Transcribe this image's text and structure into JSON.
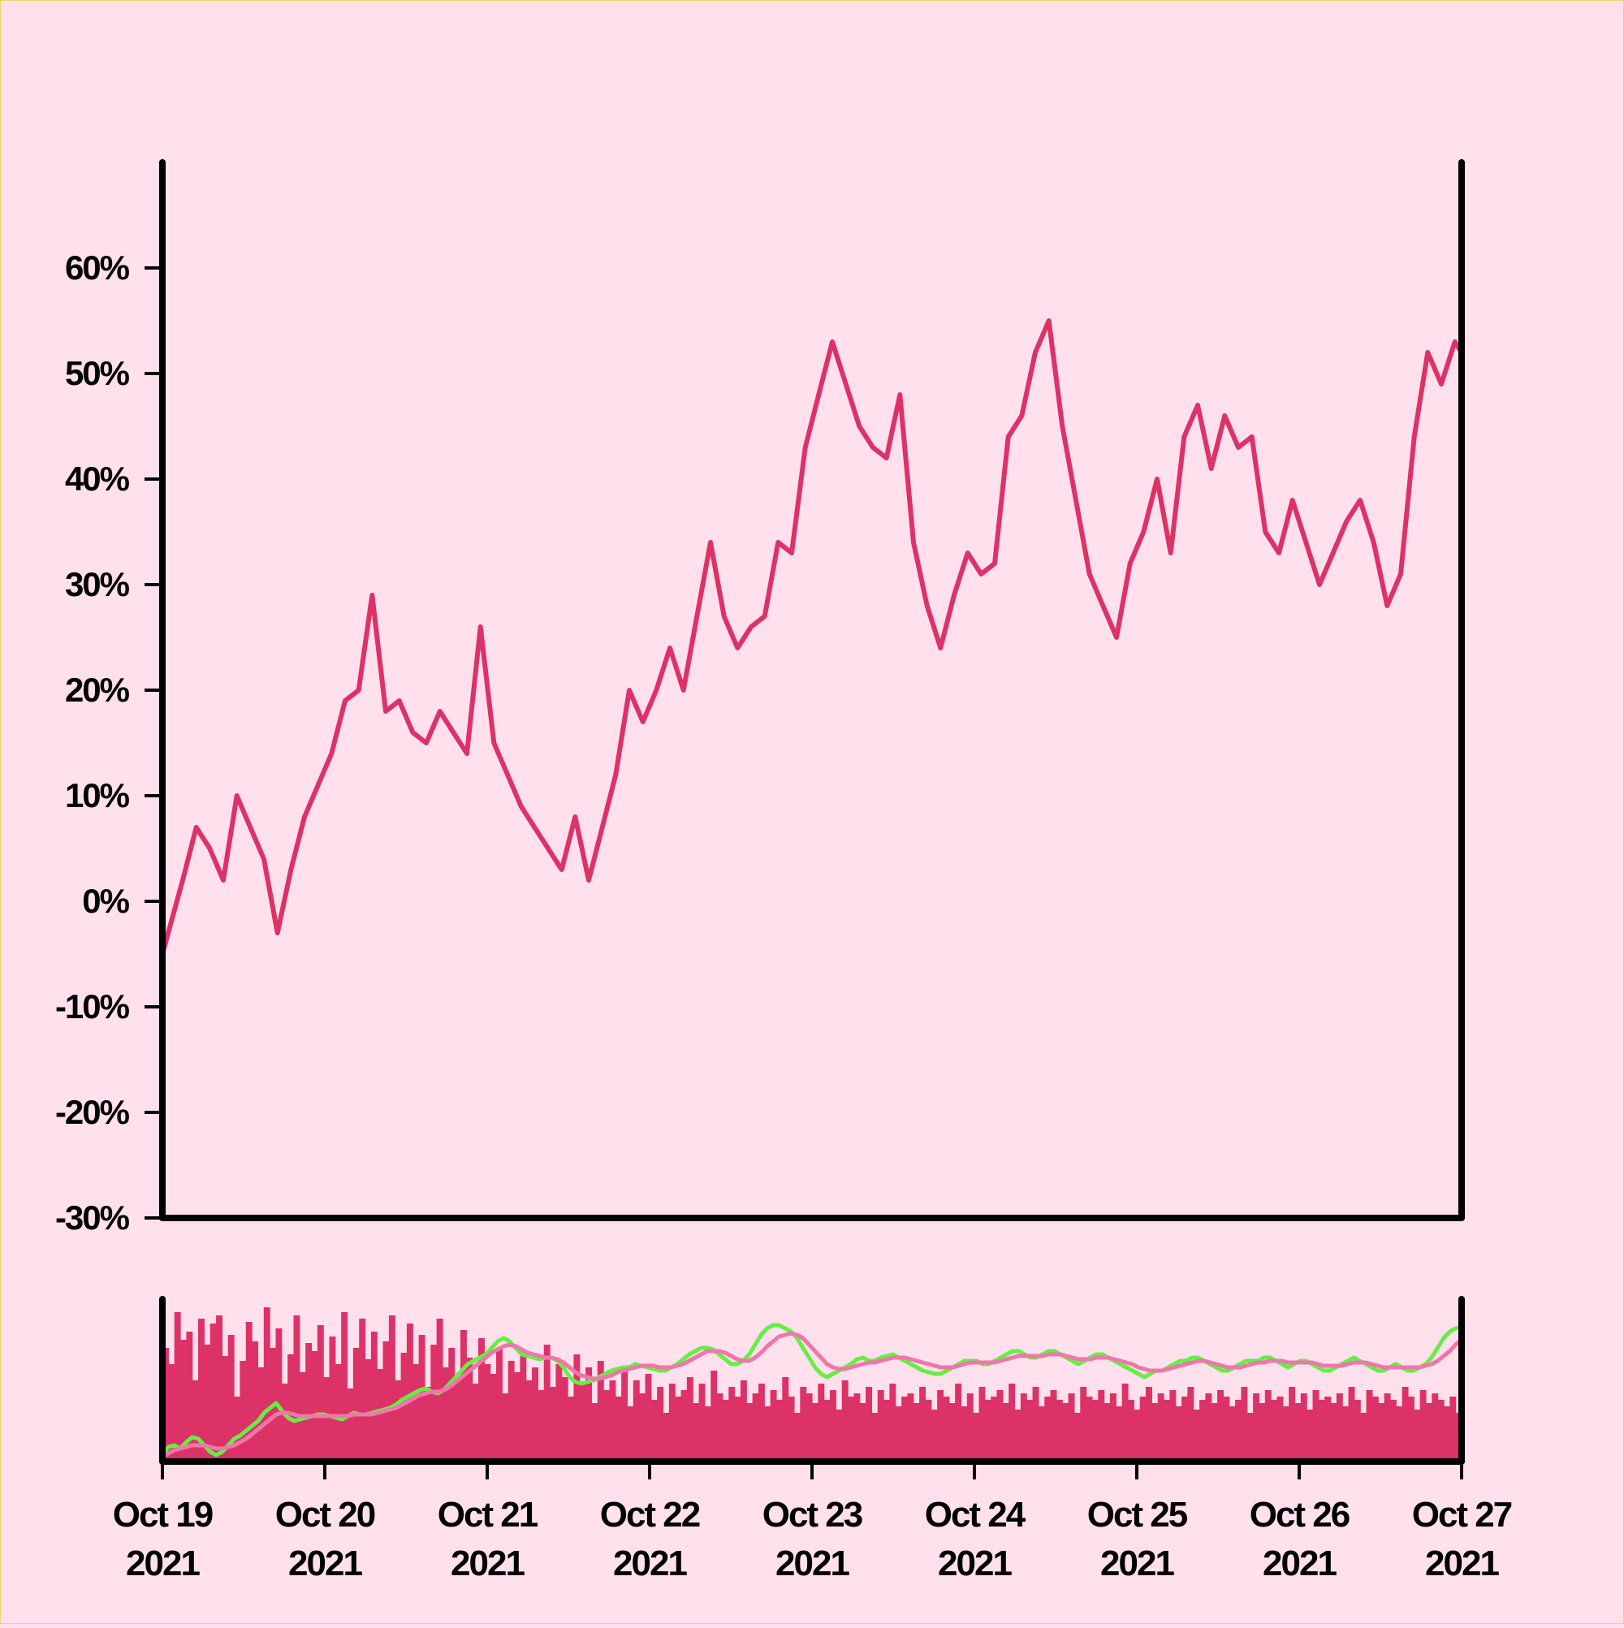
{
  "colors": {
    "background": "#ffe0ec",
    "price_line": "#dc3268",
    "volume_bars": "#dc3268",
    "ma_fast": "#66ee44",
    "ma_slow": "#ee77aa",
    "axis": "#000000"
  },
  "chart_data": [
    {
      "type": "line",
      "panel": "price",
      "title": "",
      "xlabel": "",
      "ylabel": "",
      "y_unit": "%",
      "ylim": [
        -30,
        70
      ],
      "x_range": [
        "2021-10-19",
        "2021-10-27"
      ],
      "y_ticks": [
        {
          "value": -30,
          "label": "-30%"
        },
        {
          "value": -20,
          "label": "-20%"
        },
        {
          "value": -10,
          "label": "-10%"
        },
        {
          "value": 0,
          "label": "0%"
        },
        {
          "value": 10,
          "label": "10%"
        },
        {
          "value": 20,
          "label": "20%"
        },
        {
          "value": 30,
          "label": "30%"
        },
        {
          "value": 40,
          "label": "40%"
        },
        {
          "value": 50,
          "label": "50%"
        },
        {
          "value": 60,
          "label": "60%"
        }
      ],
      "grid": false,
      "series": [
        {
          "x": [
            "2021-10-19 00:00",
            "2021-10-19 03:00",
            "2021-10-19 05:00",
            "2021-10-19 07:00",
            "2021-10-19 09:00",
            "2021-10-19 11:00",
            "2021-10-19 13:00",
            "2021-10-19 15:00",
            "2021-10-19 17:00",
            "2021-10-19 19:00",
            "2021-10-19 21:00",
            "2021-10-19 23:00",
            "2021-10-20 01:00",
            "2021-10-20 03:00",
            "2021-10-20 05:00",
            "2021-10-20 07:00",
            "2021-10-20 09:00",
            "2021-10-20 11:00",
            "2021-10-20 13:00",
            "2021-10-20 15:00",
            "2021-10-20 17:00",
            "2021-10-20 19:00",
            "2021-10-20 21:00",
            "2021-10-20 23:00",
            "2021-10-21 01:00",
            "2021-10-21 03:00",
            "2021-10-21 05:00",
            "2021-10-21 07:00",
            "2021-10-21 09:00",
            "2021-10-21 11:00",
            "2021-10-21 13:00",
            "2021-10-21 15:00",
            "2021-10-21 17:00",
            "2021-10-21 19:00",
            "2021-10-21 21:00",
            "2021-10-21 23:00",
            "2021-10-22 01:00",
            "2021-10-22 03:00",
            "2021-10-22 05:00",
            "2021-10-22 07:00",
            "2021-10-22 09:00",
            "2021-10-22 11:00",
            "2021-10-22 13:00",
            "2021-10-22 15:00",
            "2021-10-22 17:00",
            "2021-10-22 19:00",
            "2021-10-22 21:00",
            "2021-10-22 23:00",
            "2021-10-23 01:00",
            "2021-10-23 03:00",
            "2021-10-23 05:00",
            "2021-10-23 07:00",
            "2021-10-23 09:00",
            "2021-10-23 11:00",
            "2021-10-23 13:00",
            "2021-10-23 15:00",
            "2021-10-23 17:00",
            "2021-10-23 19:00",
            "2021-10-23 21:00",
            "2021-10-23 23:00",
            "2021-10-24 01:00",
            "2021-10-24 03:00",
            "2021-10-24 05:00",
            "2021-10-24 07:00",
            "2021-10-24 09:00",
            "2021-10-24 11:00",
            "2021-10-24 13:00",
            "2021-10-24 15:00",
            "2021-10-24 17:00",
            "2021-10-24 19:00",
            "2021-10-24 21:00",
            "2021-10-24 23:00",
            "2021-10-25 01:00",
            "2021-10-25 03:00",
            "2021-10-25 05:00",
            "2021-10-25 07:00",
            "2021-10-25 09:00",
            "2021-10-25 11:00",
            "2021-10-25 13:00",
            "2021-10-25 15:00",
            "2021-10-25 17:00",
            "2021-10-25 19:00",
            "2021-10-25 21:00",
            "2021-10-25 23:00",
            "2021-10-26 01:00",
            "2021-10-26 03:00",
            "2021-10-26 05:00",
            "2021-10-26 07:00",
            "2021-10-26 09:00",
            "2021-10-26 11:00",
            "2021-10-26 13:00",
            "2021-10-26 15:00",
            "2021-10-26 17:00",
            "2021-10-26 19:00",
            "2021-10-26 21:00",
            "2021-10-26 23:00",
            "2021-10-27 00:00"
          ],
          "y": [
            -5,
            2,
            7,
            5,
            2,
            10,
            7,
            4,
            -3,
            3,
            8,
            11,
            14,
            19,
            20,
            29,
            18,
            19,
            16,
            15,
            18,
            16,
            14,
            26,
            15,
            12,
            9,
            7,
            5,
            3,
            8,
            2,
            7,
            12,
            20,
            17,
            20,
            24,
            20,
            27,
            34,
            27,
            24,
            26,
            27,
            34,
            33,
            43,
            48,
            53,
            49,
            45,
            43,
            42,
            48,
            34,
            28,
            24,
            29,
            33,
            31,
            32,
            44,
            46,
            52,
            55,
            45,
            38,
            31,
            28,
            25,
            32,
            35,
            40,
            33,
            44,
            47,
            41,
            46,
            43,
            44,
            35,
            33,
            38,
            34,
            30,
            33,
            36,
            38,
            34,
            28,
            31,
            44,
            52,
            49,
            53,
            52
          ]
        }
      ]
    },
    {
      "type": "bar",
      "panel": "volume",
      "title": "",
      "xlabel": "",
      "ylabel": "",
      "ylim": [
        0,
        100
      ],
      "x_range": [
        "2021-10-19",
        "2021-10-27"
      ],
      "x_ticks": [
        {
          "value": "2021-10-19",
          "label1": "Oct 19",
          "label2": "2021"
        },
        {
          "value": "2021-10-20",
          "label1": "Oct 20",
          "label2": "2021"
        },
        {
          "value": "2021-10-21",
          "label1": "Oct 21",
          "label2": "2021"
        },
        {
          "value": "2021-10-22",
          "label1": "Oct 22",
          "label2": "2021"
        },
        {
          "value": "2021-10-23",
          "label1": "Oct 23",
          "label2": "2021"
        },
        {
          "value": "2021-10-24",
          "label1": "Oct 24",
          "label2": "2021"
        },
        {
          "value": "2021-10-25",
          "label1": "Oct 25",
          "label2": "2021"
        },
        {
          "value": "2021-10-26",
          "label1": "Oct 26",
          "label2": "2021"
        },
        {
          "value": "2021-10-27",
          "label1": "Oct 27",
          "label2": "2021"
        }
      ],
      "grid": false,
      "volume": [
        70,
        60,
        92,
        75,
        80,
        50,
        88,
        72,
        85,
        90,
        65,
        78,
        40,
        62,
        86,
        74,
        58,
        95,
        70,
        82,
        48,
        66,
        90,
        55,
        73,
        68,
        84,
        52,
        77,
        60,
        92,
        45,
        70,
        88,
        63,
        80,
        57,
        74,
        90,
        50,
        67,
        85,
        60,
        78,
        46,
        72,
        88,
        58,
        70,
        52,
        81,
        64,
        48,
        76,
        60,
        54,
        70,
        42,
        62,
        55,
        68,
        50,
        58,
        44,
        72,
        46,
        60,
        52,
        40,
        66,
        48,
        58,
        36,
        62,
        44,
        50,
        40,
        56,
        34,
        50,
        42,
        54,
        38,
        46,
        30,
        48,
        40,
        44,
        52,
        36,
        48,
        34,
        56,
        42,
        38,
        46,
        40,
        50,
        36,
        42,
        48,
        34,
        44,
        38,
        52,
        40,
        30,
        46,
        42,
        36,
        48,
        38,
        44,
        32,
        50,
        40,
        42,
        36,
        46,
        30,
        44,
        38,
        48,
        34,
        40,
        42,
        36,
        46,
        38,
        32,
        44,
        40,
        36,
        48,
        34,
        42,
        30,
        46,
        38,
        40,
        44,
        36,
        48,
        32,
        42,
        38,
        46,
        34,
        40,
        44,
        38,
        36,
        42,
        30,
        46,
        40,
        38,
        44,
        36,
        42,
        34,
        48,
        38,
        32,
        40,
        46,
        36,
        42,
        38,
        44,
        34,
        40,
        46,
        32,
        38,
        42,
        36,
        44,
        40,
        34,
        38,
        46,
        30,
        42,
        36,
        44,
        38,
        40,
        34,
        46,
        36,
        42,
        32,
        44,
        38,
        40,
        36,
        42,
        34,
        46,
        38,
        30,
        44,
        40,
        36,
        42,
        38,
        34,
        46,
        40,
        32,
        44,
        36,
        42,
        38,
        34,
        40,
        30
      ],
      "ma_fast": [
        4,
        9,
        10,
        8,
        12,
        15,
        14,
        10,
        6,
        4,
        6,
        10,
        14,
        16,
        19,
        22,
        25,
        30,
        33,
        36,
        31,
        27,
        25,
        26,
        27,
        28,
        29,
        29,
        28,
        27,
        26,
        28,
        30,
        29,
        29,
        30,
        31,
        32,
        33,
        35,
        38,
        40,
        42,
        44,
        45,
        43,
        42,
        44,
        48,
        52,
        56,
        60,
        62,
        64,
        66,
        70,
        74,
        76,
        74,
        70,
        66,
        65,
        64,
        63,
        64,
        64,
        62,
        58,
        52,
        49,
        48,
        49,
        50,
        52,
        54,
        56,
        57,
        58,
        58,
        60,
        59,
        58,
        57,
        56,
        56,
        58,
        60,
        63,
        66,
        68,
        70,
        70,
        69,
        66,
        63,
        60,
        60,
        62,
        66,
        72,
        78,
        82,
        84,
        84,
        82,
        80,
        76,
        70,
        64,
        58,
        54,
        52,
        54,
        56,
        58,
        60,
        63,
        64,
        62,
        62,
        64,
        65,
        66,
        64,
        62,
        60,
        58,
        56,
        55,
        54,
        54,
        56,
        58,
        60,
        62,
        62,
        62,
        60,
        60,
        62,
        64,
        66,
        68,
        68,
        66,
        64,
        64,
        66,
        68,
        68,
        66,
        64,
        62,
        60,
        62,
        64,
        66,
        66,
        64,
        62,
        60,
        58,
        56,
        54,
        52,
        54,
        56,
        56,
        58,
        60,
        62,
        62,
        64,
        64,
        62,
        60,
        58,
        56,
        56,
        58,
        60,
        62,
        62,
        62,
        64,
        64,
        62,
        60,
        58,
        60,
        62,
        62,
        60,
        58,
        56,
        56,
        58,
        60,
        62,
        64,
        62,
        60,
        58,
        56,
        56,
        58,
        60,
        58,
        56,
        56,
        58,
        60,
        64,
        70,
        76,
        80,
        82,
        83
      ],
      "ma_slow": [
        3,
        5,
        7,
        8,
        9,
        10,
        10,
        10,
        9,
        8,
        8,
        9,
        10,
        12,
        14,
        17,
        20,
        23,
        26,
        29,
        30,
        30,
        29,
        28,
        28,
        28,
        28,
        28,
        28,
        28,
        28,
        28,
        29,
        29,
        29,
        29,
        30,
        31,
        32,
        33,
        35,
        37,
        39,
        41,
        42,
        43,
        43,
        44,
        46,
        49,
        52,
        55,
        58,
        61,
        64,
        67,
        69,
        71,
        72,
        71,
        69,
        67,
        66,
        65,
        64,
        64,
        63,
        61,
        58,
        55,
        53,
        52,
        51,
        51,
        52,
        53,
        55,
        56,
        57,
        58,
        59,
        59,
        59,
        58,
        58,
        58,
        59,
        60,
        62,
        64,
        66,
        68,
        68,
        68,
        67,
        65,
        63,
        62,
        62,
        64,
        67,
        71,
        74,
        77,
        78,
        79,
        78,
        76,
        72,
        68,
        64,
        60,
        58,
        57,
        57,
        58,
        59,
        60,
        61,
        61,
        62,
        63,
        64,
        64,
        64,
        63,
        62,
        61,
        60,
        59,
        58,
        58,
        58,
        59,
        60,
        61,
        61,
        61,
        61,
        61,
        62,
        63,
        64,
        65,
        65,
        65,
        65,
        65,
        66,
        66,
        66,
        65,
        64,
        63,
        63,
        63,
        64,
        64,
        64,
        63,
        62,
        61,
        60,
        58,
        57,
        56,
        56,
        56,
        57,
        58,
        59,
        60,
        61,
        62,
        62,
        61,
        60,
        59,
        58,
        58,
        58,
        59,
        60,
        61,
        61,
        62,
        62,
        62,
        61,
        61,
        61,
        61,
        61,
        60,
        59,
        59,
        59,
        59,
        60,
        61,
        61,
        61,
        60,
        59,
        58,
        58,
        58,
        58,
        58,
        58,
        58,
        59,
        60,
        62,
        65,
        68,
        72,
        75
      ]
    }
  ]
}
